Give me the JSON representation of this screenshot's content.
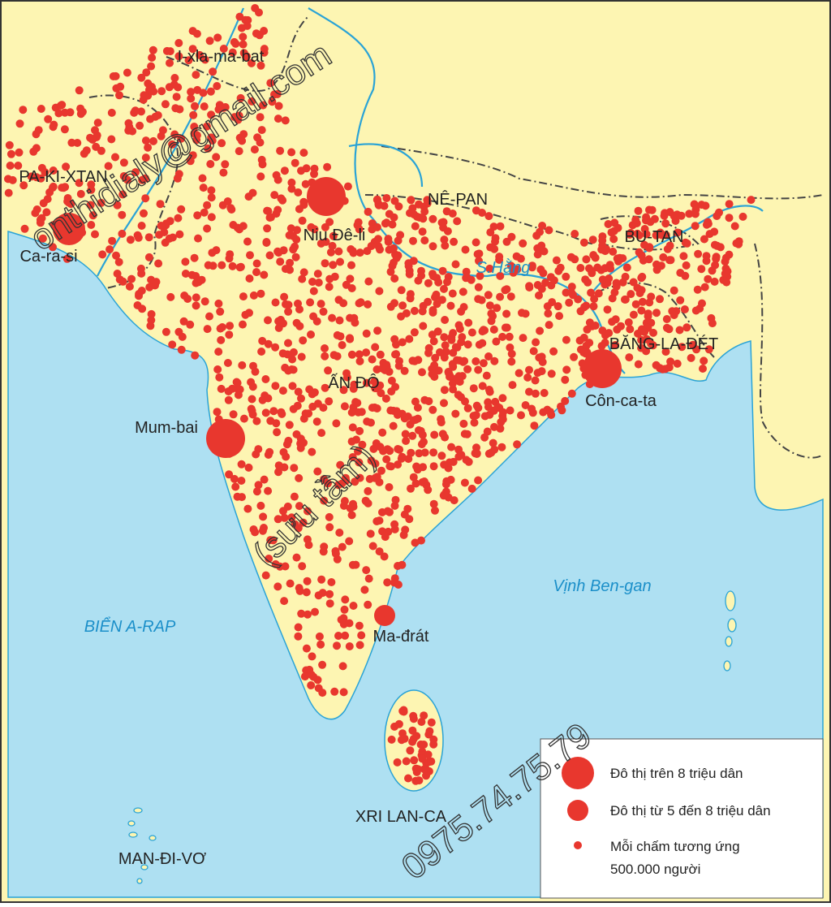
{
  "map": {
    "countries": [
      "PA-KI-XTAN",
      "NÊ-PAN",
      "BU-TAN",
      "BĂNG-LA-ĐÉT",
      "ẤN ĐỘ",
      "XRI LAN-CA",
      "MAN-ĐI-VƠ"
    ],
    "cities": [
      "I-xla-ma-bat",
      "Niu Đê-li",
      "Ca-ra-si",
      "Mum-bai",
      "Côn-ca-ta",
      "Ma-đrát"
    ],
    "seas": [
      "BIỂN A-RAP",
      "Vịnh Ben-gan"
    ],
    "rivers": [
      "S.Hằng"
    ],
    "legend": {
      "large": "Đô thị trên 8 triệu dân",
      "medium": "Đô thị từ 5 đến 8 triệu dân",
      "dot": [
        "Mỗi chấm tương ứng",
        "500.000 người"
      ]
    },
    "watermarks": [
      "onthidialy@gmail.com",
      "(sưu tầm)",
      "0975.74.75.79"
    ]
  }
}
